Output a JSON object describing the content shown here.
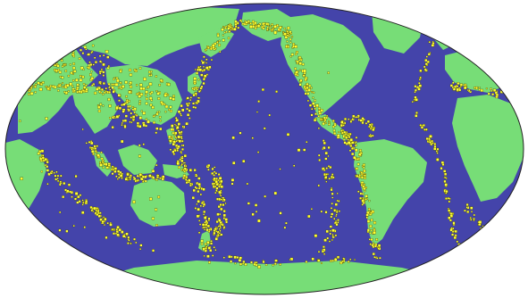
{
  "map": {
    "projection": "mollweide",
    "colors": {
      "background": "#ffffff",
      "ocean": "#4444aa",
      "land": "#77dd77",
      "quake": "#ffff33",
      "quake_outline": "#333300",
      "rim": "#222222"
    }
  }
}
